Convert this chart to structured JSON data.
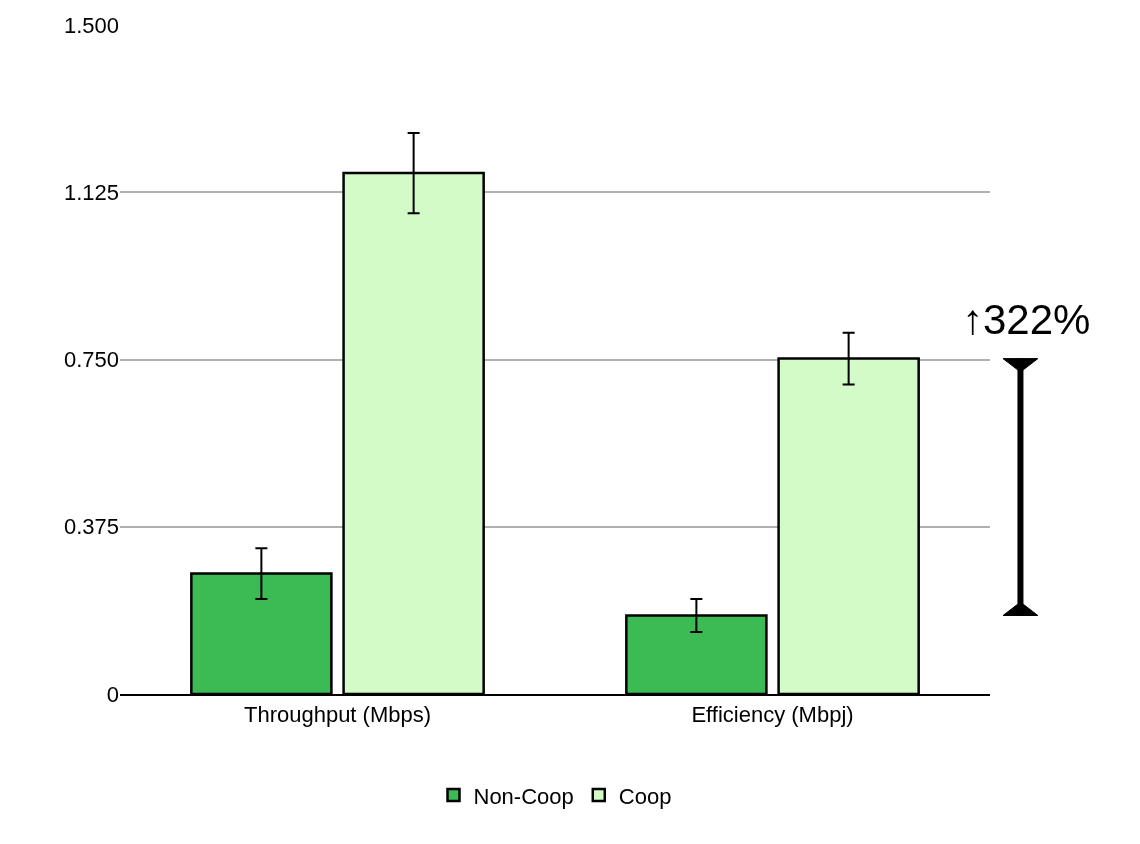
{
  "chart_data": {
    "type": "bar",
    "categories": [
      "Throughput (Mbps)",
      "Efficiency (Mbpj)"
    ],
    "series": [
      {
        "name": "Non-Coop",
        "color": "#3cba54",
        "values": [
          0.27,
          0.176
        ],
        "errors": [
          0.057,
          0.037
        ]
      },
      {
        "name": "Coop",
        "color": "#d2fbc8",
        "values": [
          1.168,
          0.752
        ],
        "errors": [
          0.09,
          0.058
        ]
      }
    ],
    "ylim": [
      0,
      1.5
    ],
    "yticks": [
      0,
      {
        "value": 0.375,
        "label": "0.375"
      },
      {
        "value": 0.75,
        "label": "0.750"
      },
      {
        "value": 1.125,
        "label": "1.125"
      },
      {
        "value": 1.5,
        "label": "1.500"
      }
    ],
    "grid": "y",
    "legend": "bottom",
    "annotations": [
      "↑322%"
    ]
  }
}
